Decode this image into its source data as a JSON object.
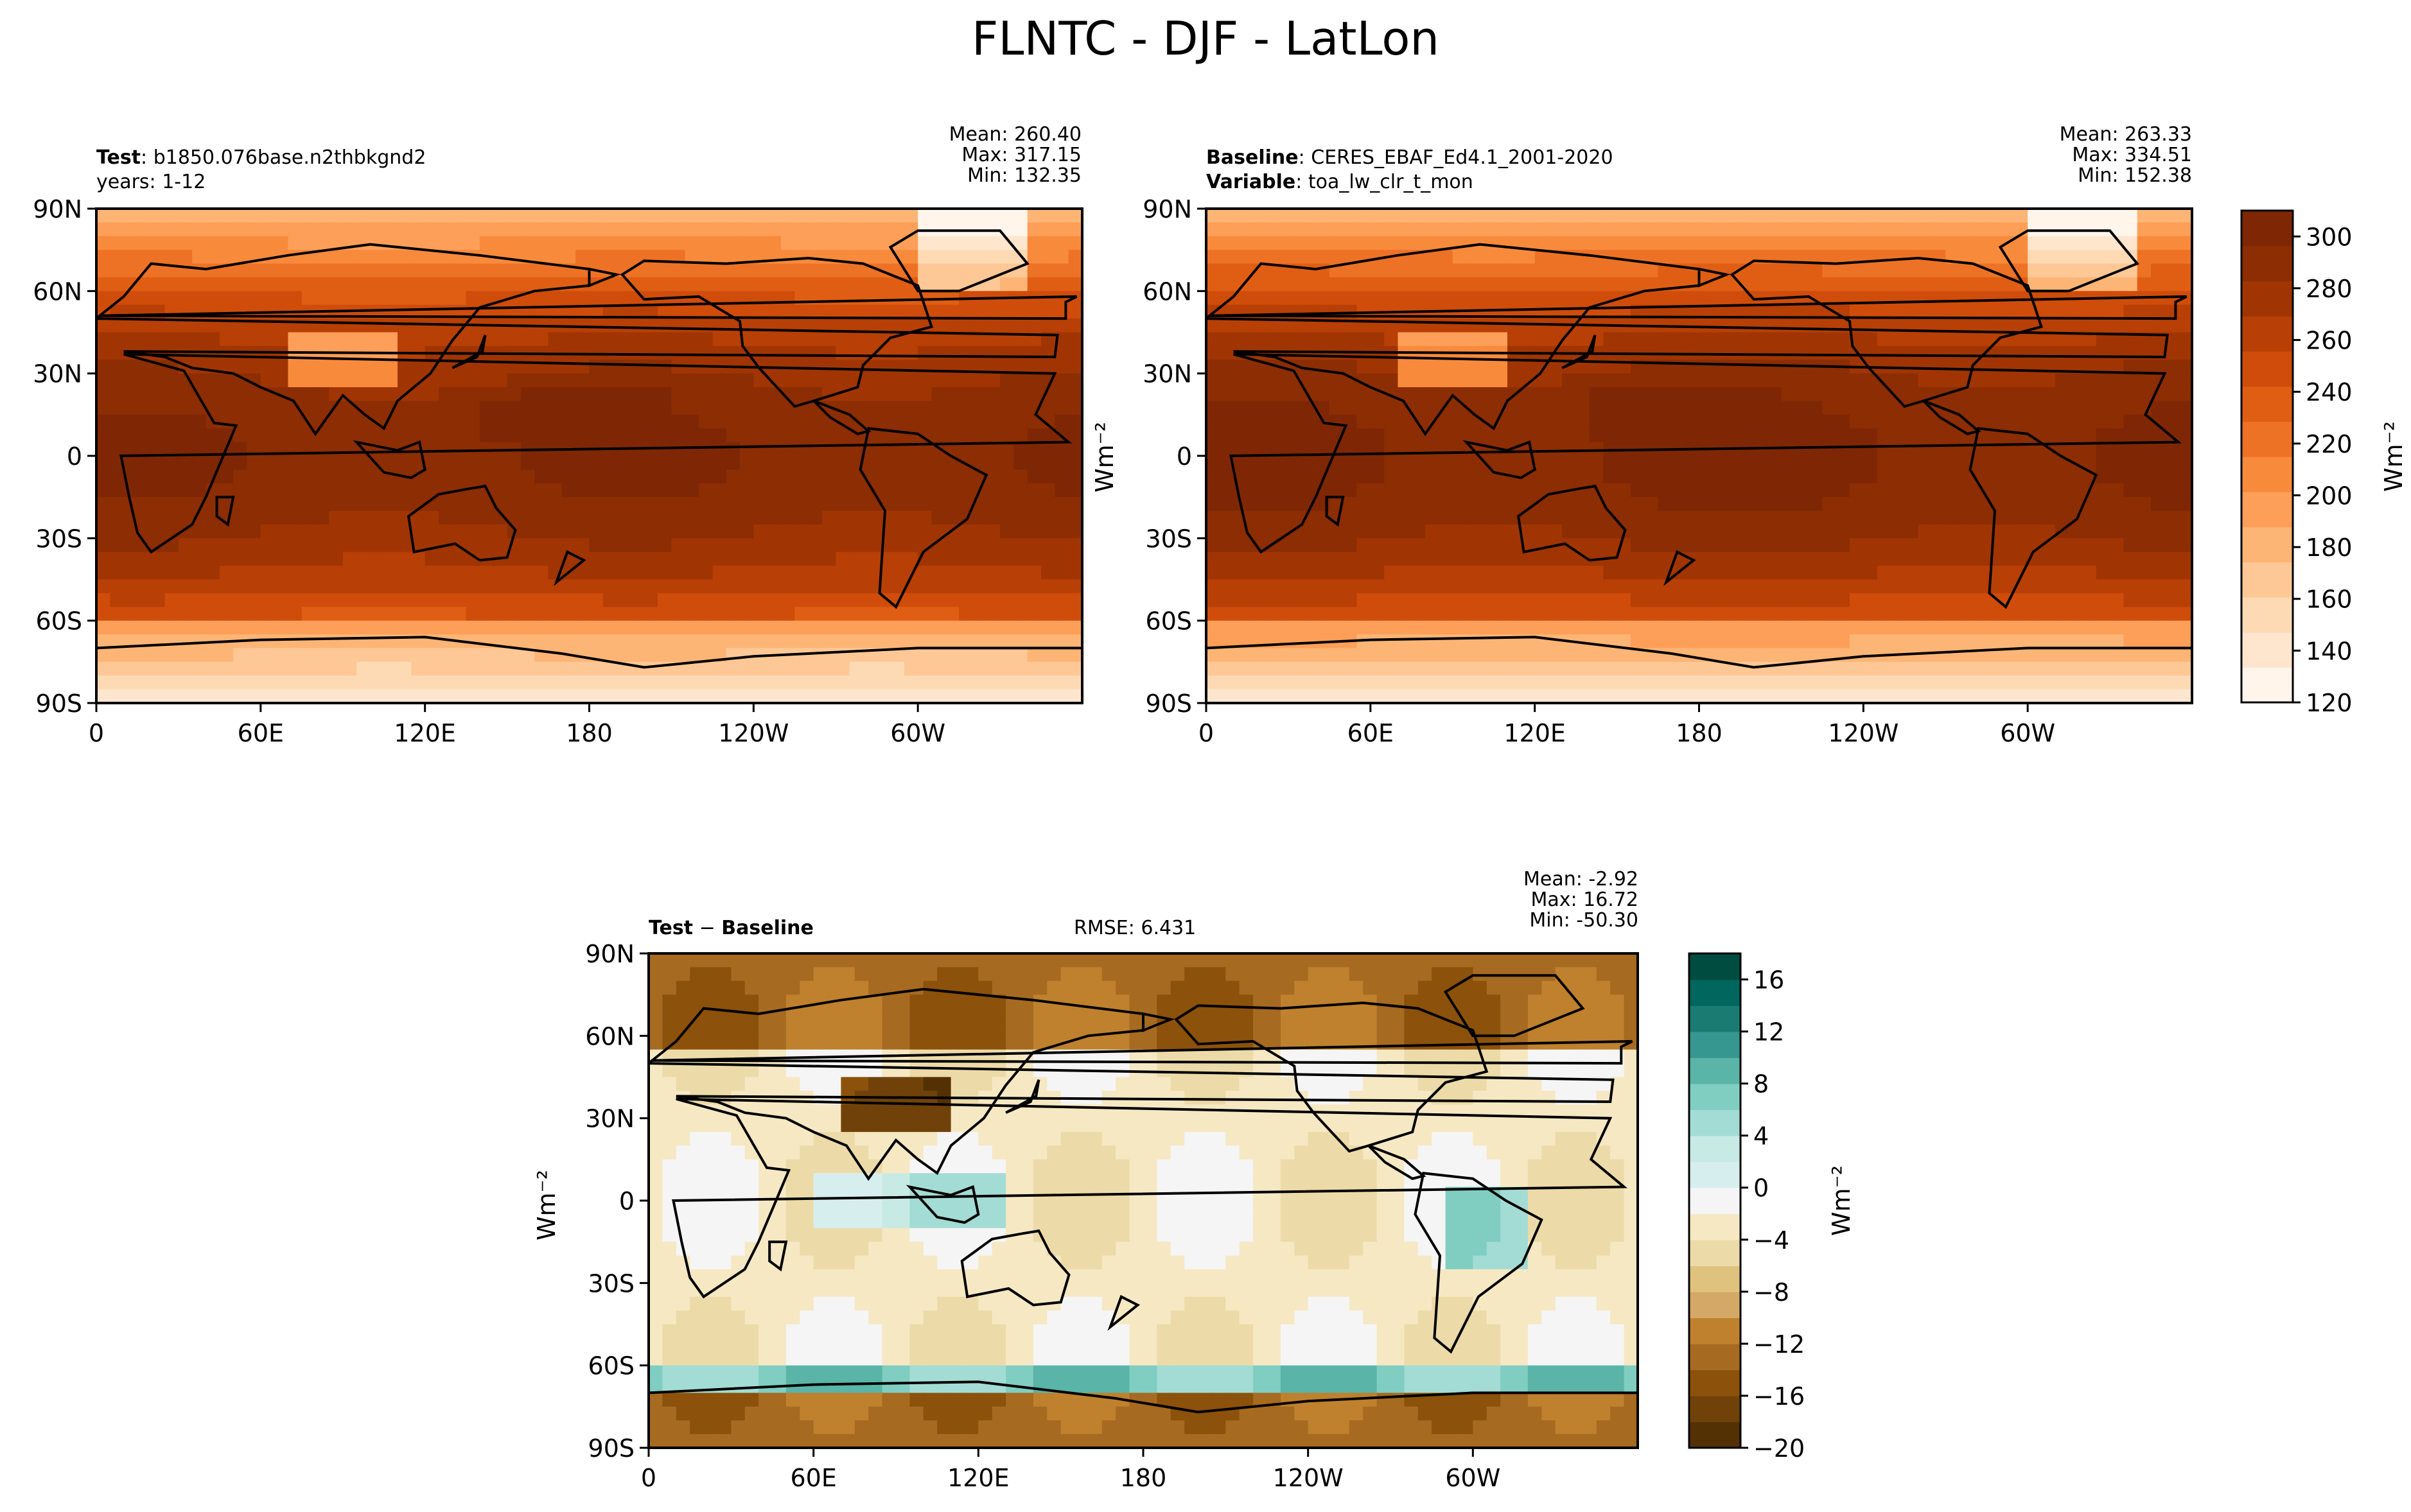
{
  "figure": {
    "title": "FLNTC - DJF - LatLon"
  },
  "panels": {
    "test": {
      "label_bold": "Test",
      "label_value": "b1850.076base.n2thbkgnd2",
      "label2": "years: 1-12",
      "mean": "Mean: 260.40",
      "max": "Max: 317.15",
      "min": "Min: 132.35"
    },
    "baseline": {
      "label_bold": "Baseline",
      "label_value": "CERES_EBAF_Ed4.1_2001-2020",
      "label2_bold": "Variable",
      "label2_value": "toa_lw_clr_t_mon",
      "mean": "Mean: 263.33",
      "max": "Max: 334.51",
      "min": "Min: 152.38",
      "ylabel": "Wm⁻²"
    },
    "diff": {
      "label": "Test − Baseline",
      "label_bold_a": "Test",
      "label_sep": " − ",
      "label_bold_b": "Baseline",
      "rmse": "RMSE: 6.431",
      "mean": "Mean: -2.92",
      "max": "Max: 16.72",
      "min": "Min: -50.30",
      "ylabel": "Wm⁻²"
    }
  },
  "colors": {
    "seq": [
      "#fff5eb",
      "#fee6ce",
      "#fdd9b4",
      "#fdc895",
      "#fdb575",
      "#fd9f58",
      "#f88a3c",
      "#ee7226",
      "#e05e14",
      "#cf4c0b",
      "#b83f05",
      "#a03503",
      "#8c2d04",
      "#7f2704"
    ],
    "div": [
      "#543005",
      "#70420a",
      "#8c510a",
      "#a66a21",
      "#bf812d",
      "#d4a866",
      "#dfc27d",
      "#ecdba8",
      "#f6e8c3",
      "#f5f5f5",
      "#d7eeee",
      "#c7eae5",
      "#a3dcd4",
      "#80cdc1",
      "#5ab4a8",
      "#35978f",
      "#1a7b72",
      "#01665e",
      "#014c40"
    ]
  },
  "chart_data": [
    {
      "type": "heatmap",
      "name": "test",
      "x_ticks": [
        "0",
        "60E",
        "120E",
        "180",
        "120W",
        "60W"
      ],
      "y_ticks": [
        "90N",
        "60N",
        "30N",
        "0",
        "30S",
        "60S",
        "90S"
      ],
      "xlim": [
        0,
        360
      ],
      "ylim": [
        -90,
        90
      ]
    },
    {
      "type": "heatmap",
      "name": "baseline",
      "x_ticks": [
        "0",
        "60E",
        "120E",
        "180",
        "120W",
        "60W"
      ],
      "y_ticks": [
        "90N",
        "60N",
        "30N",
        "0",
        "30S",
        "60S",
        "90S"
      ],
      "xlim": [
        0,
        360
      ],
      "ylim": [
        -90,
        90
      ],
      "colorbar": {
        "ticks": [
          "300",
          "280",
          "260",
          "240",
          "220",
          "200",
          "180",
          "160",
          "140",
          "120"
        ],
        "range": [
          120,
          310
        ],
        "label": "Wm⁻²"
      }
    },
    {
      "type": "heatmap",
      "name": "diff",
      "x_ticks": [
        "0",
        "60E",
        "120E",
        "180",
        "120W",
        "60W"
      ],
      "y_ticks": [
        "90N",
        "60N",
        "30N",
        "0",
        "30S",
        "60S",
        "90S"
      ],
      "xlim": [
        0,
        360
      ],
      "ylim": [
        -90,
        90
      ],
      "colorbar": {
        "ticks": [
          "16",
          "12",
          "8",
          "4",
          "0",
          "−4",
          "−8",
          "−12",
          "−16",
          "−20"
        ],
        "range": [
          -20,
          18
        ],
        "label": "Wm⁻²"
      }
    }
  ]
}
